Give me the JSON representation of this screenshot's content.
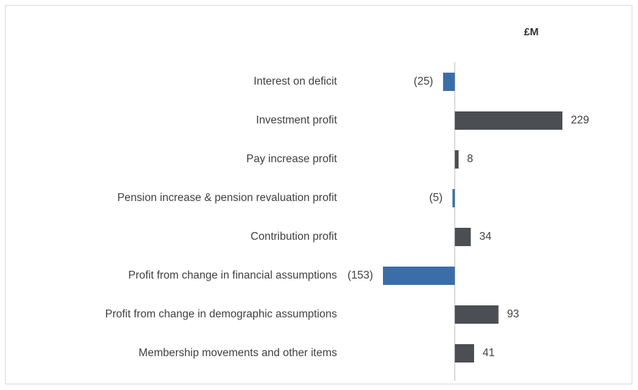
{
  "chart_data": {
    "type": "hbar",
    "subtitle": "£M",
    "categories": [
      "Interest on deficit",
      "Investment profit",
      "Pay increase profit",
      "Pension increase & pension revaluation profit",
      "Contribution profit",
      "Profit from change in financial assumptions",
      "Profit from change in demographic assumptions",
      "Membership movements and other items"
    ],
    "values": [
      -25,
      229,
      8,
      -5,
      34,
      -153,
      93,
      41
    ],
    "value_labels": [
      "(25)",
      "229",
      "8",
      "(5)",
      "34",
      "(153)",
      "93",
      "41"
    ],
    "colors": [
      "#3b6ea8",
      "#4b4e53",
      "#4b4e53",
      "#3b6ea8",
      "#4b4e53",
      "#3b6ea8",
      "#4b4e53",
      "#4b4e53"
    ]
  }
}
